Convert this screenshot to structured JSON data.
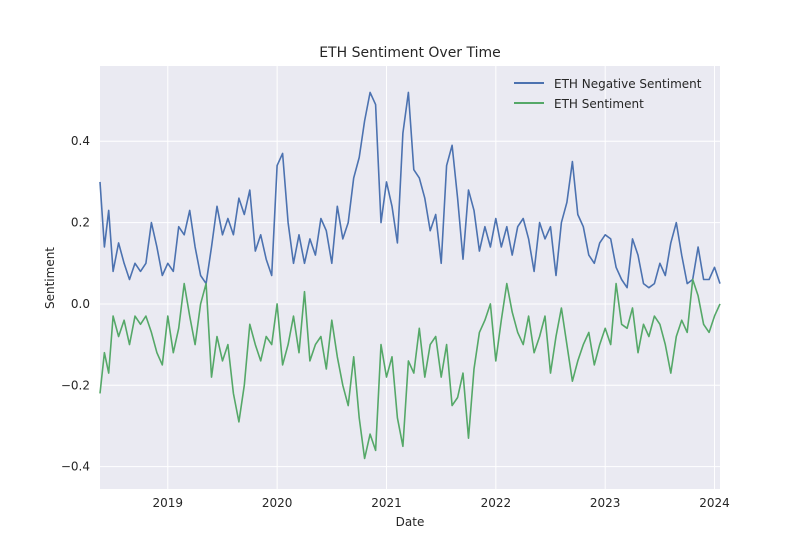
{
  "chart_data": {
    "type": "line",
    "title": "ETH Sentiment Over Time",
    "xlabel": "Date",
    "ylabel": "Sentiment",
    "xlim": [
      2018.38,
      2024.05
    ],
    "ylim": [
      -0.455,
      0.585
    ],
    "x_ticks": [
      2019,
      2020,
      2021,
      2022,
      2023,
      2024
    ],
    "x_tick_labels": [
      "2019",
      "2020",
      "2021",
      "2022",
      "2023",
      "2024"
    ],
    "y_ticks": [
      -0.4,
      -0.2,
      0.0,
      0.2,
      0.4
    ],
    "y_tick_labels": [
      "−0.4",
      "−0.2",
      "0.0",
      "0.2",
      "0.4"
    ],
    "grid": true,
    "legend_position": "top-right",
    "series": [
      {
        "name": "ETH Negative Sentiment",
        "color": "#4c72b0",
        "x": [
          2018.38,
          2018.42,
          2018.46,
          2018.5,
          2018.55,
          2018.6,
          2018.65,
          2018.7,
          2018.75,
          2018.8,
          2018.85,
          2018.9,
          2018.95,
          2019.0,
          2019.05,
          2019.1,
          2019.15,
          2019.2,
          2019.25,
          2019.3,
          2019.35,
          2019.4,
          2019.45,
          2019.5,
          2019.55,
          2019.6,
          2019.65,
          2019.7,
          2019.75,
          2019.8,
          2019.85,
          2019.9,
          2019.95,
          2020.0,
          2020.05,
          2020.1,
          2020.15,
          2020.2,
          2020.25,
          2020.3,
          2020.35,
          2020.4,
          2020.45,
          2020.5,
          2020.55,
          2020.6,
          2020.65,
          2020.7,
          2020.75,
          2020.8,
          2020.85,
          2020.9,
          2020.95,
          2021.0,
          2021.05,
          2021.1,
          2021.15,
          2021.2,
          2021.25,
          2021.3,
          2021.35,
          2021.4,
          2021.45,
          2021.5,
          2021.55,
          2021.6,
          2021.65,
          2021.7,
          2021.75,
          2021.8,
          2021.85,
          2021.9,
          2021.95,
          2022.0,
          2022.05,
          2022.1,
          2022.15,
          2022.2,
          2022.25,
          2022.3,
          2022.35,
          2022.4,
          2022.45,
          2022.5,
          2022.55,
          2022.6,
          2022.65,
          2022.7,
          2022.75,
          2022.8,
          2022.85,
          2022.9,
          2022.95,
          2023.0,
          2023.05,
          2023.1,
          2023.15,
          2023.2,
          2023.25,
          2023.3,
          2023.35,
          2023.4,
          2023.45,
          2023.5,
          2023.55,
          2023.6,
          2023.65,
          2023.7,
          2023.75,
          2023.8,
          2023.85,
          2023.9,
          2023.95,
          2024.0,
          2024.05
        ],
        "values": [
          0.3,
          0.14,
          0.23,
          0.08,
          0.15,
          0.1,
          0.06,
          0.1,
          0.08,
          0.1,
          0.2,
          0.14,
          0.07,
          0.1,
          0.08,
          0.19,
          0.17,
          0.23,
          0.14,
          0.07,
          0.05,
          0.14,
          0.24,
          0.17,
          0.21,
          0.17,
          0.26,
          0.22,
          0.28,
          0.13,
          0.17,
          0.11,
          0.07,
          0.34,
          0.37,
          0.2,
          0.1,
          0.17,
          0.1,
          0.16,
          0.12,
          0.21,
          0.18,
          0.1,
          0.24,
          0.16,
          0.2,
          0.31,
          0.36,
          0.45,
          0.52,
          0.49,
          0.2,
          0.3,
          0.24,
          0.15,
          0.42,
          0.52,
          0.33,
          0.31,
          0.26,
          0.18,
          0.22,
          0.1,
          0.34,
          0.39,
          0.26,
          0.11,
          0.28,
          0.23,
          0.13,
          0.19,
          0.14,
          0.21,
          0.14,
          0.19,
          0.12,
          0.19,
          0.21,
          0.16,
          0.08,
          0.2,
          0.16,
          0.19,
          0.07,
          0.2,
          0.25,
          0.35,
          0.22,
          0.19,
          0.12,
          0.1,
          0.15,
          0.17,
          0.16,
          0.09,
          0.06,
          0.04,
          0.16,
          0.12,
          0.05,
          0.04,
          0.05,
          0.1,
          0.07,
          0.15,
          0.2,
          0.12,
          0.05,
          0.06,
          0.14,
          0.06,
          0.06,
          0.09,
          0.05
        ]
      },
      {
        "name": "ETH Sentiment",
        "color": "#55a868",
        "x": [
          2018.38,
          2018.42,
          2018.46,
          2018.5,
          2018.55,
          2018.6,
          2018.65,
          2018.7,
          2018.75,
          2018.8,
          2018.85,
          2018.9,
          2018.95,
          2019.0,
          2019.05,
          2019.1,
          2019.15,
          2019.2,
          2019.25,
          2019.3,
          2019.35,
          2019.4,
          2019.45,
          2019.5,
          2019.55,
          2019.6,
          2019.65,
          2019.7,
          2019.75,
          2019.8,
          2019.85,
          2019.9,
          2019.95,
          2020.0,
          2020.05,
          2020.1,
          2020.15,
          2020.2,
          2020.25,
          2020.3,
          2020.35,
          2020.4,
          2020.45,
          2020.5,
          2020.55,
          2020.6,
          2020.65,
          2020.7,
          2020.75,
          2020.8,
          2020.85,
          2020.9,
          2020.95,
          2021.0,
          2021.05,
          2021.1,
          2021.15,
          2021.2,
          2021.25,
          2021.3,
          2021.35,
          2021.4,
          2021.45,
          2021.5,
          2021.55,
          2021.6,
          2021.65,
          2021.7,
          2021.75,
          2021.8,
          2021.85,
          2021.9,
          2021.95,
          2022.0,
          2022.05,
          2022.1,
          2022.15,
          2022.2,
          2022.25,
          2022.3,
          2022.35,
          2022.4,
          2022.45,
          2022.5,
          2022.55,
          2022.6,
          2022.65,
          2022.7,
          2022.75,
          2022.8,
          2022.85,
          2022.9,
          2022.95,
          2023.0,
          2023.05,
          2023.1,
          2023.15,
          2023.2,
          2023.25,
          2023.3,
          2023.35,
          2023.4,
          2023.45,
          2023.5,
          2023.55,
          2023.6,
          2023.65,
          2023.7,
          2023.75,
          2023.8,
          2023.85,
          2023.9,
          2023.95,
          2024.0,
          2024.05
        ],
        "values": [
          -0.22,
          -0.12,
          -0.17,
          -0.03,
          -0.08,
          -0.04,
          -0.1,
          -0.03,
          -0.05,
          -0.03,
          -0.07,
          -0.12,
          -0.15,
          -0.03,
          -0.12,
          -0.06,
          0.05,
          -0.03,
          -0.1,
          0.0,
          0.05,
          -0.18,
          -0.08,
          -0.14,
          -0.1,
          -0.22,
          -0.29,
          -0.2,
          -0.05,
          -0.1,
          -0.14,
          -0.08,
          -0.1,
          0.0,
          -0.15,
          -0.1,
          -0.03,
          -0.12,
          0.03,
          -0.14,
          -0.1,
          -0.08,
          -0.16,
          -0.04,
          -0.13,
          -0.2,
          -0.25,
          -0.13,
          -0.28,
          -0.38,
          -0.32,
          -0.36,
          -0.1,
          -0.18,
          -0.13,
          -0.28,
          -0.35,
          -0.14,
          -0.17,
          -0.06,
          -0.18,
          -0.1,
          -0.08,
          -0.18,
          -0.1,
          -0.25,
          -0.23,
          -0.17,
          -0.33,
          -0.16,
          -0.07,
          -0.04,
          0.0,
          -0.14,
          -0.04,
          0.05,
          -0.02,
          -0.07,
          -0.1,
          -0.03,
          -0.12,
          -0.08,
          -0.03,
          -0.17,
          -0.08,
          -0.01,
          -0.1,
          -0.19,
          -0.14,
          -0.1,
          -0.07,
          -0.15,
          -0.1,
          -0.06,
          -0.1,
          0.05,
          -0.05,
          -0.06,
          -0.01,
          -0.12,
          -0.05,
          -0.08,
          -0.03,
          -0.05,
          -0.1,
          -0.17,
          -0.08,
          -0.04,
          -0.07,
          0.06,
          0.02,
          -0.05,
          -0.07,
          -0.03,
          0.0
        ]
      }
    ]
  }
}
